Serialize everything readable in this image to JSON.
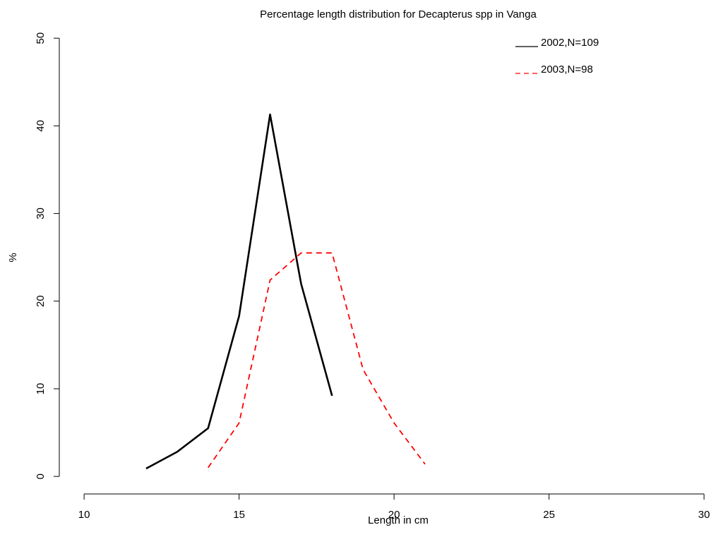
{
  "chart_data": {
    "type": "line",
    "title": "Percentage length distribution for Decapterus spp in Vanga",
    "x_label": "Length in cm",
    "y_label": "%",
    "xlim": [
      9.2,
      30.8
    ],
    "xticks": [
      10,
      15,
      20,
      25,
      30
    ],
    "ylim": [
      -2,
      52
    ],
    "yticks": [
      0,
      10,
      20,
      30,
      40,
      50
    ],
    "legend": "top-right",
    "series": [
      {
        "name": "2002,N=109",
        "color": "#000000",
        "dash": "solid",
        "x": [
          12,
          13,
          14,
          15,
          16,
          17,
          18
        ],
        "values": [
          0.9,
          2.8,
          5.5,
          18.3,
          41.3,
          22.0,
          9.2
        ]
      },
      {
        "name": "2003,N=98",
        "color": "#ff0000",
        "dash": "dashed",
        "x": [
          14,
          15,
          16,
          17,
          18,
          19,
          20,
          21
        ],
        "values": [
          1.0,
          6.1,
          22.4,
          25.5,
          25.5,
          12.2,
          6.1,
          1.4
        ]
      }
    ]
  }
}
